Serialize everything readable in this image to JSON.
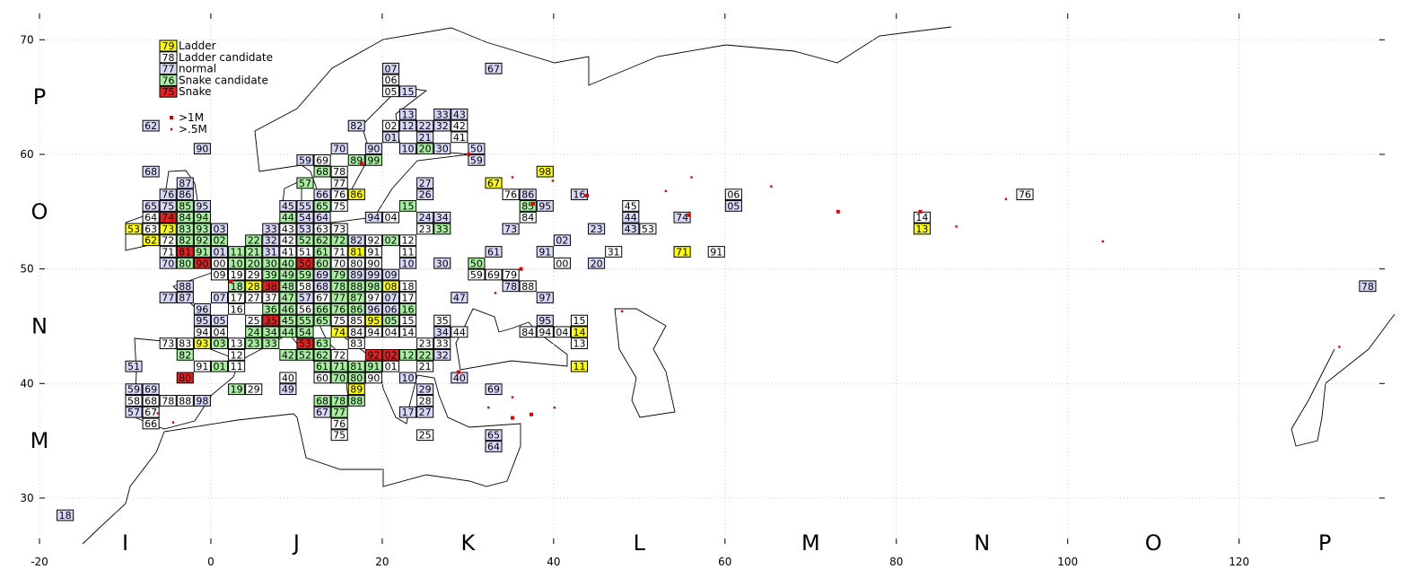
{
  "map": {
    "xlim": [
      -20,
      137
    ],
    "ylim": [
      26,
      72.3
    ],
    "xticks": [
      -20,
      0,
      20,
      40,
      60,
      80,
      100,
      120
    ],
    "yticks": [
      30,
      40,
      50,
      60,
      70
    ],
    "grid": true,
    "col_letters": [
      "I",
      "J",
      "K",
      "L",
      "M",
      "N",
      "O",
      "P"
    ],
    "row_letters": [
      "P",
      "O",
      "N",
      "M"
    ],
    "legend": [
      {
        "sample": "79",
        "label": "Ladder",
        "color": "#ffff00"
      },
      {
        "sample": "78",
        "label": "Ladder candidate",
        "color": "#ffffff"
      },
      {
        "sample": "77",
        "label": "normal",
        "color": "#d8d8f8"
      },
      {
        "sample": "76",
        "label": "Snake candidate",
        "color": "#a8f0a0"
      },
      {
        "sample": "75",
        "label": "Snake",
        "color": "#e82020"
      }
    ],
    "city_legend": {
      "large": ">1M",
      "small": ">.5M",
      "color": "#e00000"
    },
    "cities": {
      "large": [
        [
          17.6,
          59.2
        ],
        [
          30.1,
          60.0
        ],
        [
          43.9,
          56.4
        ],
        [
          55.8,
          54.7
        ],
        [
          73.2,
          55.0
        ],
        [
          82.8,
          55.0
        ],
        [
          37.4,
          37.3
        ],
        [
          35.2,
          37.0
        ],
        [
          28.9,
          41.0
        ],
        [
          36.2,
          50.0
        ],
        [
          37.6,
          55.7
        ],
        [
          2.3,
          48.9
        ]
      ],
      "small": [
        [
          35.2,
          58.0
        ],
        [
          39.9,
          57.7
        ],
        [
          53.1,
          56.8
        ],
        [
          56.1,
          58.0
        ],
        [
          65.4,
          57.2
        ],
        [
          92.8,
          56.1
        ],
        [
          87.0,
          53.7
        ],
        [
          104.1,
          52.4
        ],
        [
          131.7,
          43.2
        ],
        [
          48.0,
          46.3
        ],
        [
          40.1,
          37.9
        ],
        [
          32.4,
          37.9
        ],
        [
          35.2,
          38.8
        ],
        [
          33.2,
          47.9
        ],
        [
          -6.2,
          37.4
        ],
        [
          -4.4,
          36.6
        ]
      ]
    },
    "squares": [
      {
        "col": "I",
        "row": "P",
        "color": "#d8d8f8",
        "labels": [
          "62",
          "90"
        ]
      },
      {
        "col": "I",
        "row": "L",
        "color": "#d8d8f8",
        "labels": [
          "18"
        ]
      },
      {
        "col": "I",
        "row": "O",
        "color": "#d8d8f8",
        "labels": [
          "68",
          "87",
          "76",
          "86",
          "65",
          "75",
          "95",
          "70"
        ]
      },
      {
        "col": "I",
        "row": "O",
        "color": "#ffffff",
        "labels": [
          "64",
          "63",
          "72",
          "71"
        ]
      },
      {
        "col": "I",
        "row": "O",
        "color": "#a8f0a0",
        "labels": [
          "85",
          "84",
          "94",
          "83",
          "93",
          "82",
          "92",
          "91",
          "80"
        ]
      },
      {
        "col": "I",
        "row": "O",
        "color": "#ffff00",
        "labels": [
          "53",
          "73",
          "62"
        ]
      },
      {
        "col": "I",
        "row": "O",
        "color": "#e82020",
        "labels": [
          "74",
          "81",
          "90"
        ]
      },
      {
        "col": "I",
        "row": "N",
        "color": "#d8d8f8",
        "labels": [
          "88",
          "77",
          "87",
          "96",
          "95",
          "51"
        ]
      },
      {
        "col": "I",
        "row": "N",
        "color": "#ffffff",
        "labels": [
          "94",
          "73",
          "83",
          "91"
        ]
      },
      {
        "col": "I",
        "row": "N",
        "color": "#ffff00",
        "labels": [
          "93"
        ]
      },
      {
        "col": "I",
        "row": "N",
        "color": "#a8f0a0",
        "labels": [
          "82"
        ]
      },
      {
        "col": "I",
        "row": "N",
        "color": "#e82020",
        "labels": [
          "80"
        ]
      },
      {
        "col": "I",
        "row": "M",
        "color": "#d8d8f8",
        "labels": [
          "59",
          "69",
          "98",
          "57"
        ]
      },
      {
        "col": "I",
        "row": "M",
        "color": "#ffffff",
        "labels": [
          "58",
          "68",
          "78",
          "88",
          "67",
          "66"
        ]
      },
      {
        "col": "J",
        "row": "P",
        "color": "#d8d8f8",
        "labels": [
          "82",
          "70",
          "90"
        ]
      },
      {
        "col": "J",
        "row": "O",
        "color": "#d8d8f8",
        "labels": [
          "59",
          "66",
          "45",
          "55",
          "54",
          "64",
          "94",
          "03",
          "33",
          "53",
          "32",
          "82",
          "01",
          "31"
        ]
      },
      {
        "col": "J",
        "row": "O",
        "color": "#ffffff",
        "labels": [
          "69",
          "78",
          "77",
          "76",
          "75",
          "43",
          "63",
          "73",
          "42",
          "92",
          "41",
          "51",
          "71",
          "91",
          "00",
          "70",
          "80",
          "90"
        ]
      },
      {
        "col": "J",
        "row": "O",
        "color": "#a8f0a0",
        "labels": [
          "89",
          "99",
          "68",
          "57",
          "65",
          "44",
          "02",
          "22",
          "52",
          "62",
          "72",
          "11",
          "21",
          "61",
          "10",
          "20",
          "30",
          "40",
          "60"
        ]
      },
      {
        "col": "J",
        "row": "O",
        "color": "#ffff00",
        "labels": [
          "86",
          "81"
        ]
      },
      {
        "col": "J",
        "row": "O",
        "color": "#e82020",
        "labels": [
          "50"
        ]
      },
      {
        "col": "K",
        "row": "P",
        "color": "#d8d8f8",
        "labels": [
          "07",
          "15",
          "13",
          "33",
          "43",
          "12",
          "22",
          "32",
          "01",
          "21",
          "10",
          "30",
          "50",
          "67"
        ]
      },
      {
        "col": "K",
        "row": "P",
        "color": "#ffffff",
        "labels": [
          "06",
          "05",
          "02",
          "42",
          "41"
        ]
      },
      {
        "col": "K",
        "row": "P",
        "color": "#a8f0a0",
        "labels": [
          "20"
        ]
      },
      {
        "col": "K",
        "row": "O",
        "color": "#d8d8f8",
        "labels": [
          "24",
          "34",
          "10",
          "30",
          "27",
          "26",
          "59",
          "86",
          "95",
          "73",
          "61",
          "91"
        ]
      },
      {
        "col": "K",
        "row": "O",
        "color": "#ffffff",
        "labels": [
          "04",
          "23",
          "12",
          "11",
          "76",
          "84"
        ]
      },
      {
        "col": "K",
        "row": "O",
        "color": "#a8f0a0",
        "labels": [
          "15",
          "33",
          "02",
          "85",
          "50"
        ]
      },
      {
        "col": "K",
        "row": "O",
        "color": "#ffff00",
        "labels": [
          "67",
          "98"
        ]
      },
      {
        "col": "L",
        "row": "O",
        "color": "#d8d8f8",
        "labels": [
          "16",
          "44",
          "43",
          "74",
          "23",
          "20",
          "02"
        ]
      },
      {
        "col": "L",
        "row": "O",
        "color": "#ffffff",
        "labels": [
          "45",
          "53",
          "31",
          "91",
          "00"
        ]
      },
      {
        "col": "L",
        "row": "O",
        "color": "#ffff00",
        "labels": [
          "71"
        ]
      },
      {
        "col": "M",
        "row": "O",
        "color": "#d8d8f8",
        "labels": [
          "05"
        ]
      },
      {
        "col": "M",
        "row": "O",
        "color": "#ffffff",
        "labels": [
          "06"
        ]
      },
      {
        "col": "N",
        "row": "O",
        "color": "#ffffff",
        "labels": [
          "76",
          "14"
        ]
      },
      {
        "col": "N",
        "row": "O",
        "color": "#ffff00",
        "labels": [
          "13"
        ]
      },
      {
        "col": "P",
        "row": "N",
        "color": "#d8d8f8",
        "labels": [
          "78"
        ]
      },
      {
        "col": "J",
        "row": "N",
        "color": "#d8d8f8",
        "labels": [
          "69",
          "89",
          "99",
          "68",
          "07",
          "57",
          "96",
          "05"
        ]
      },
      {
        "col": "J",
        "row": "N",
        "color": "#ffffff",
        "labels": [
          "09",
          "19",
          "29",
          "58",
          "17",
          "27",
          "37",
          "67",
          "97",
          "16",
          "56",
          "25",
          "75",
          "85",
          "04",
          "84",
          "94",
          "13",
          "83",
          "12",
          "72",
          "11",
          "60",
          "90",
          "40"
        ]
      },
      {
        "col": "J",
        "row": "N",
        "color": "#a8f0a0",
        "labels": [
          "39",
          "49",
          "59",
          "79",
          "18",
          "48",
          "78",
          "88",
          "98",
          "47",
          "77",
          "87",
          "36",
          "46",
          "66",
          "76",
          "86",
          "45",
          "55",
          "65",
          "24",
          "34",
          "44",
          "54",
          "03",
          "23",
          "33",
          "63",
          "42",
          "52",
          "62",
          "01",
          "61",
          "71",
          "81",
          "91",
          "70",
          "80"
        ]
      },
      {
        "col": "J",
        "row": "N",
        "color": "#ffff00",
        "labels": [
          "28",
          "95",
          "74"
        ]
      },
      {
        "col": "J",
        "row": "N",
        "color": "#e82020",
        "labels": [
          "38",
          "35",
          "53",
          "92"
        ]
      },
      {
        "col": "K",
        "row": "N",
        "color": "#d8d8f8",
        "labels": [
          "09",
          "07",
          "06",
          "34",
          "32",
          "10",
          "40",
          "47",
          "78",
          "97",
          "95"
        ]
      },
      {
        "col": "K",
        "row": "N",
        "color": "#ffffff",
        "labels": [
          "18",
          "17",
          "15",
          "35",
          "04",
          "14",
          "44",
          "23",
          "33",
          "01",
          "21",
          "59",
          "69",
          "79",
          "88",
          "84",
          "94"
        ]
      },
      {
        "col": "K",
        "row": "N",
        "color": "#a8f0a0",
        "labels": [
          "16",
          "05",
          "12",
          "22"
        ]
      },
      {
        "col": "K",
        "row": "N",
        "color": "#ffff00",
        "labels": [
          "08"
        ]
      },
      {
        "col": "K",
        "row": "N",
        "color": "#e82020",
        "labels": [
          "02"
        ]
      },
      {
        "col": "L",
        "row": "N",
        "color": "#ffffff",
        "labels": [
          "04",
          "15",
          "13"
        ]
      },
      {
        "col": "L",
        "row": "N",
        "color": "#ffff00",
        "labels": [
          "14",
          "11"
        ]
      },
      {
        "col": "K",
        "row": "M",
        "color": "#d8d8f8",
        "labels": [
          "69",
          "17",
          "27",
          "65",
          "64",
          "29"
        ]
      },
      {
        "col": "K",
        "row": "M",
        "color": "#ffffff",
        "labels": [
          "25",
          "28"
        ]
      },
      {
        "col": "J",
        "row": "M",
        "color": "#d8d8f8",
        "labels": [
          "49",
          "67"
        ]
      },
      {
        "col": "J",
        "row": "M",
        "color": "#ffffff",
        "labels": [
          "29",
          "76",
          "75"
        ]
      },
      {
        "col": "J",
        "row": "M",
        "color": "#a8f0a0",
        "labels": [
          "19",
          "68",
          "78",
          "88",
          "77"
        ]
      },
      {
        "col": "J",
        "row": "M",
        "color": "#ffff00",
        "labels": [
          "89"
        ]
      }
    ]
  }
}
